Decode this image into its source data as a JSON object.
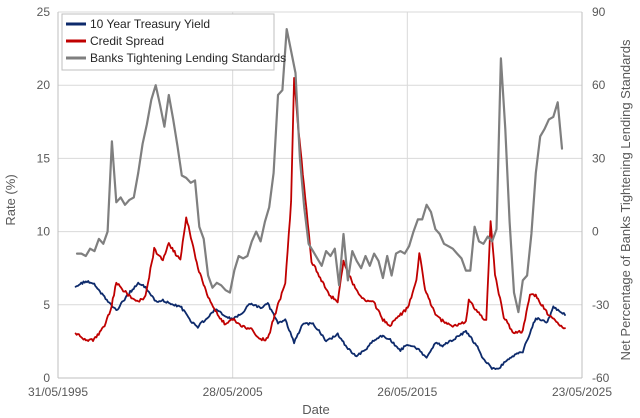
{
  "chart_data": {
    "type": "line",
    "title": "",
    "xlabel": "Date",
    "ylabel": "Rate (%)",
    "y2label": "Net Percentage of Banks Tightening Lending Standards",
    "x_ticks": [
      "31/05/1995",
      "28/05/2005",
      "26/05/2015",
      "23/05/2025"
    ],
    "xlim": [
      "1995-05-31",
      "2025-05-23"
    ],
    "ylim": [
      0,
      25
    ],
    "y_ticks": [
      "0",
      "5",
      "10",
      "15",
      "20",
      "25"
    ],
    "y2lim": [
      -60,
      90
    ],
    "y2_ticks": [
      "-60",
      "-30",
      "0",
      "30",
      "60",
      "90"
    ],
    "grid": true,
    "legend_position": "top-left",
    "series": [
      {
        "name": "10 Year Treasury Yield",
        "axis": "left",
        "color": "#0d2a6b",
        "x": [
          "1996-06",
          "1997-01",
          "1997-06",
          "1998-01",
          "1998-10",
          "1999-06",
          "2000-01",
          "2000-06",
          "2001-01",
          "2001-06",
          "2002-01",
          "2002-06",
          "2003-01",
          "2003-06",
          "2004-01",
          "2004-06",
          "2005-01",
          "2005-06",
          "2006-01",
          "2006-06",
          "2007-01",
          "2007-06",
          "2008-01",
          "2008-06",
          "2008-12",
          "2009-06",
          "2010-01",
          "2010-06",
          "2010-10",
          "2011-06",
          "2012-01",
          "2012-07",
          "2013-01",
          "2013-06",
          "2014-01",
          "2014-06",
          "2015-01",
          "2015-06",
          "2016-01",
          "2016-07",
          "2017-01",
          "2017-06",
          "2018-01",
          "2018-10",
          "2019-06",
          "2019-09",
          "2020-03",
          "2020-08",
          "2021-01",
          "2021-06",
          "2022-01",
          "2022-06",
          "2022-10",
          "2023-06",
          "2023-10",
          "2024-06"
        ],
        "y": [
          6.3,
          6.6,
          6.5,
          5.6,
          4.6,
          5.7,
          6.5,
          6.2,
          5.2,
          5.3,
          5.0,
          4.9,
          3.9,
          3.5,
          4.2,
          4.7,
          4.2,
          4.0,
          4.5,
          5.1,
          4.8,
          5.1,
          3.7,
          4.0,
          2.4,
          3.7,
          3.7,
          3.1,
          2.5,
          3.0,
          2.0,
          1.5,
          1.9,
          2.5,
          2.9,
          2.6,
          1.9,
          2.3,
          2.0,
          1.4,
          2.4,
          2.2,
          2.6,
          3.2,
          2.1,
          1.5,
          0.7,
          0.6,
          1.1,
          1.5,
          1.8,
          3.1,
          4.1,
          3.8,
          4.9,
          4.3
        ]
      },
      {
        "name": "Credit Spread",
        "axis": "left",
        "color": "#c00000",
        "x": [
          "1996-06",
          "1997-01",
          "1997-06",
          "1998-01",
          "1998-06",
          "1998-10",
          "1999-06",
          "2000-01",
          "2000-06",
          "2000-12",
          "2001-06",
          "2001-10",
          "2002-06",
          "2002-10",
          "2003-06",
          "2004-01",
          "2004-06",
          "2005-01",
          "2005-06",
          "2006-01",
          "2006-06",
          "2007-01",
          "2007-06",
          "2008-01",
          "2008-06",
          "2008-10",
          "2008-12",
          "2009-03",
          "2009-06",
          "2009-12",
          "2010-06",
          "2011-01",
          "2011-06",
          "2011-10",
          "2012-06",
          "2013-01",
          "2013-06",
          "2014-01",
          "2014-06",
          "2015-06",
          "2015-12",
          "2016-02",
          "2016-06",
          "2017-01",
          "2017-06",
          "2018-01",
          "2018-10",
          "2018-12",
          "2019-06",
          "2019-12",
          "2020-03",
          "2020-06",
          "2020-12",
          "2021-06",
          "2022-01",
          "2022-06",
          "2022-10",
          "2023-06",
          "2023-12",
          "2024-06"
        ],
        "y": [
          3.1,
          2.6,
          2.6,
          3.4,
          4.6,
          6.5,
          5.7,
          5.2,
          5.6,
          8.8,
          8.0,
          9.2,
          8.0,
          11.0,
          7.5,
          5.5,
          4.6,
          3.6,
          4.0,
          3.5,
          3.4,
          2.6,
          2.7,
          5.0,
          6.5,
          12.0,
          20.6,
          17.0,
          14.0,
          8.0,
          6.8,
          5.6,
          5.2,
          8.0,
          6.1,
          5.2,
          5.3,
          4.0,
          3.6,
          4.8,
          6.6,
          8.6,
          6.0,
          4.3,
          3.9,
          3.5,
          3.8,
          5.3,
          4.5,
          3.9,
          10.8,
          7.0,
          4.2,
          3.1,
          3.2,
          5.7,
          5.6,
          4.4,
          3.8,
          3.4
        ]
      },
      {
        "name": "Banks Tightening Lending Standards",
        "axis": "right",
        "color": "#7f7f7f",
        "x": [
          "1996-07",
          "1996-10",
          "1997-01",
          "1997-04",
          "1997-07",
          "1997-10",
          "1998-01",
          "1998-04",
          "1998-07",
          "1998-10",
          "1999-01",
          "1999-04",
          "1999-07",
          "1999-10",
          "2000-01",
          "2000-04",
          "2000-07",
          "2000-10",
          "2001-01",
          "2001-04",
          "2001-07",
          "2001-10",
          "2002-01",
          "2002-04",
          "2002-07",
          "2002-10",
          "2003-01",
          "2003-04",
          "2003-07",
          "2003-10",
          "2004-01",
          "2004-04",
          "2004-07",
          "2004-10",
          "2005-01",
          "2005-04",
          "2005-07",
          "2005-10",
          "2006-01",
          "2006-04",
          "2006-07",
          "2006-10",
          "2007-01",
          "2007-04",
          "2007-07",
          "2007-10",
          "2008-01",
          "2008-04",
          "2008-07",
          "2008-10",
          "2009-01",
          "2009-04",
          "2009-07",
          "2009-10",
          "2010-01",
          "2010-04",
          "2010-07",
          "2010-10",
          "2011-01",
          "2011-04",
          "2011-07",
          "2011-10",
          "2012-01",
          "2012-04",
          "2012-07",
          "2012-10",
          "2013-01",
          "2013-04",
          "2013-07",
          "2013-10",
          "2014-01",
          "2014-04",
          "2014-07",
          "2014-10",
          "2015-01",
          "2015-04",
          "2015-07",
          "2015-10",
          "2016-01",
          "2016-04",
          "2016-07",
          "2016-10",
          "2017-01",
          "2017-04",
          "2017-07",
          "2017-10",
          "2018-01",
          "2018-04",
          "2018-07",
          "2018-10",
          "2019-01",
          "2019-04",
          "2019-07",
          "2019-10",
          "2020-01",
          "2020-04",
          "2020-07",
          "2020-10",
          "2021-01",
          "2021-04",
          "2021-07",
          "2021-10",
          "2022-01",
          "2022-04",
          "2022-07",
          "2022-10",
          "2023-01",
          "2023-04",
          "2023-07",
          "2023-10",
          "2024-01",
          "2024-04"
        ],
        "y": [
          -9,
          -9,
          -10,
          -7,
          -8,
          -3,
          -5,
          0,
          37,
          12,
          14,
          11,
          13,
          14,
          24,
          36,
          44,
          54,
          60,
          52,
          43,
          56,
          46,
          35,
          23,
          22,
          20,
          21,
          2,
          -3,
          -18,
          -23,
          -21,
          -22,
          -24,
          -25,
          -16,
          -10,
          -11,
          -10,
          -4,
          0,
          -4,
          4,
          10,
          24,
          56,
          58,
          83,
          74,
          65,
          30,
          10,
          -5,
          -8,
          -11,
          -14,
          -8,
          -10,
          -7,
          -22,
          -1,
          -20,
          -8,
          -12,
          -15,
          -10,
          -14,
          -9,
          -12,
          -19,
          -10,
          -18,
          -9,
          -8,
          -9,
          -6,
          0,
          5,
          5,
          11,
          8,
          1,
          -1,
          -5,
          -6,
          -7,
          -9,
          -11,
          -16,
          -16,
          2,
          -4,
          -5,
          -2,
          -4,
          1,
          71,
          42,
          4,
          -25,
          -33,
          -20,
          -18,
          -1,
          24,
          39,
          42,
          46,
          47,
          53,
          34
        ]
      }
    ]
  }
}
